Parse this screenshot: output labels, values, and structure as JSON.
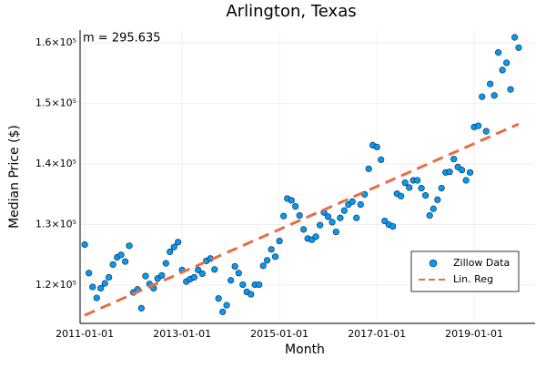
{
  "chart_data": {
    "type": "scatter",
    "title": "Arlington, Texas",
    "x_label": "Month",
    "y_label": "Median Price ($)",
    "annotation": "m = 295.635",
    "xlim": [
      "2010-11-27",
      "2020-04-02"
    ],
    "xticks": [
      "2011-01-01",
      "2013-01-01",
      "2015-01-01",
      "2017-01-01",
      "2019-01-01"
    ],
    "ylim": [
      113700,
      162100
    ],
    "yticks": [
      {
        "value": 120000,
        "label": "1.2×10⁵"
      },
      {
        "value": 130000,
        "label": "1.3×10⁵"
      },
      {
        "value": 140000,
        "label": "1.4×10⁵"
      },
      {
        "value": 150000,
        "label": "1.5×10⁵"
      },
      {
        "value": 160000,
        "label": "1.6×10⁵"
      }
    ],
    "grid": true,
    "legend": "bottom right",
    "series": [
      {
        "name": "Zillow Data",
        "color": "#009afa",
        "x": [
          "2011-01-01",
          "2011-02-01",
          "2011-03-01",
          "2011-04-01",
          "2011-05-01",
          "2011-06-01",
          "2011-07-01",
          "2011-08-01",
          "2011-09-01",
          "2011-10-01",
          "2011-11-01",
          "2011-12-01",
          "2012-01-01",
          "2012-02-01",
          "2012-03-01",
          "2012-04-01",
          "2012-05-01",
          "2012-06-01",
          "2012-07-01",
          "2012-08-01",
          "2012-09-01",
          "2012-10-01",
          "2012-11-01",
          "2012-12-01",
          "2013-01-01",
          "2013-02-01",
          "2013-03-01",
          "2013-04-01",
          "2013-05-01",
          "2013-06-01",
          "2013-07-01",
          "2013-08-01",
          "2013-09-01",
          "2013-10-01",
          "2013-11-01",
          "2013-12-01",
          "2014-01-01",
          "2014-02-01",
          "2014-03-01",
          "2014-04-01",
          "2014-05-01",
          "2014-06-01",
          "2014-07-01",
          "2014-08-01",
          "2014-09-01",
          "2014-10-01",
          "2014-11-01",
          "2014-12-01",
          "2015-01-01",
          "2015-02-01",
          "2015-03-01",
          "2015-04-01",
          "2015-05-01",
          "2015-06-01",
          "2015-07-01",
          "2015-08-01",
          "2015-09-01",
          "2015-10-01",
          "2015-11-01",
          "2015-12-01",
          "2016-01-01",
          "2016-02-01",
          "2016-03-01",
          "2016-04-01",
          "2016-05-01",
          "2016-06-01",
          "2016-07-01",
          "2016-08-01",
          "2016-09-01",
          "2016-10-01",
          "2016-11-01",
          "2016-12-01",
          "2017-01-01",
          "2017-02-01",
          "2017-03-01",
          "2017-04-01",
          "2017-05-01",
          "2017-06-01",
          "2017-07-01",
          "2017-08-01",
          "2017-09-01",
          "2017-10-01",
          "2017-11-01",
          "2017-12-01",
          "2018-01-01",
          "2018-02-01",
          "2018-03-01",
          "2018-04-01",
          "2018-05-01",
          "2018-06-01",
          "2018-07-01",
          "2018-08-01",
          "2018-09-01",
          "2018-10-01",
          "2018-11-01",
          "2018-12-01",
          "2019-01-01",
          "2019-02-01",
          "2019-03-01",
          "2019-04-01",
          "2019-05-01",
          "2019-06-01",
          "2019-07-01",
          "2019-08-01",
          "2019-09-01",
          "2019-10-01",
          "2019-11-01",
          "2019-12-01"
        ],
        "values": [
          126700,
          122000,
          119700,
          117900,
          119500,
          120300,
          121300,
          123400,
          124600,
          125000,
          123900,
          126500,
          118800,
          119300,
          116200,
          121500,
          120200,
          119500,
          121100,
          121600,
          123600,
          125500,
          126300,
          127100,
          122500,
          120600,
          121000,
          121300,
          122500,
          121900,
          124000,
          124400,
          122600,
          117800,
          115600,
          116700,
          120800,
          123100,
          122000,
          120100,
          118900,
          118500,
          120100,
          120100,
          123200,
          124100,
          125900,
          124700,
          127300,
          131400,
          134300,
          134000,
          133000,
          131500,
          129200,
          127700,
          127500,
          128000,
          129900,
          132000,
          131300,
          130400,
          128800,
          131100,
          132300,
          133300,
          133800,
          131100,
          133300,
          135000,
          139200,
          143100,
          142800,
          140700,
          130600,
          130000,
          129700,
          135100,
          134700,
          136900,
          136100,
          137300,
          137300,
          136000,
          134800,
          131500,
          132600,
          134100,
          136000,
          138600,
          138700,
          140800,
          139500,
          139000,
          137300,
          138600,
          146100,
          146300,
          151100,
          145400,
          153200,
          151300,
          158400,
          155500,
          156700,
          152300,
          160900,
          159200
        ]
      },
      {
        "name": "Lin. Reg",
        "color": "#e26f46",
        "x": [
          "2011-01-01",
          "2019-12-01"
        ],
        "values": [
          115040,
          146600
        ]
      }
    ]
  }
}
